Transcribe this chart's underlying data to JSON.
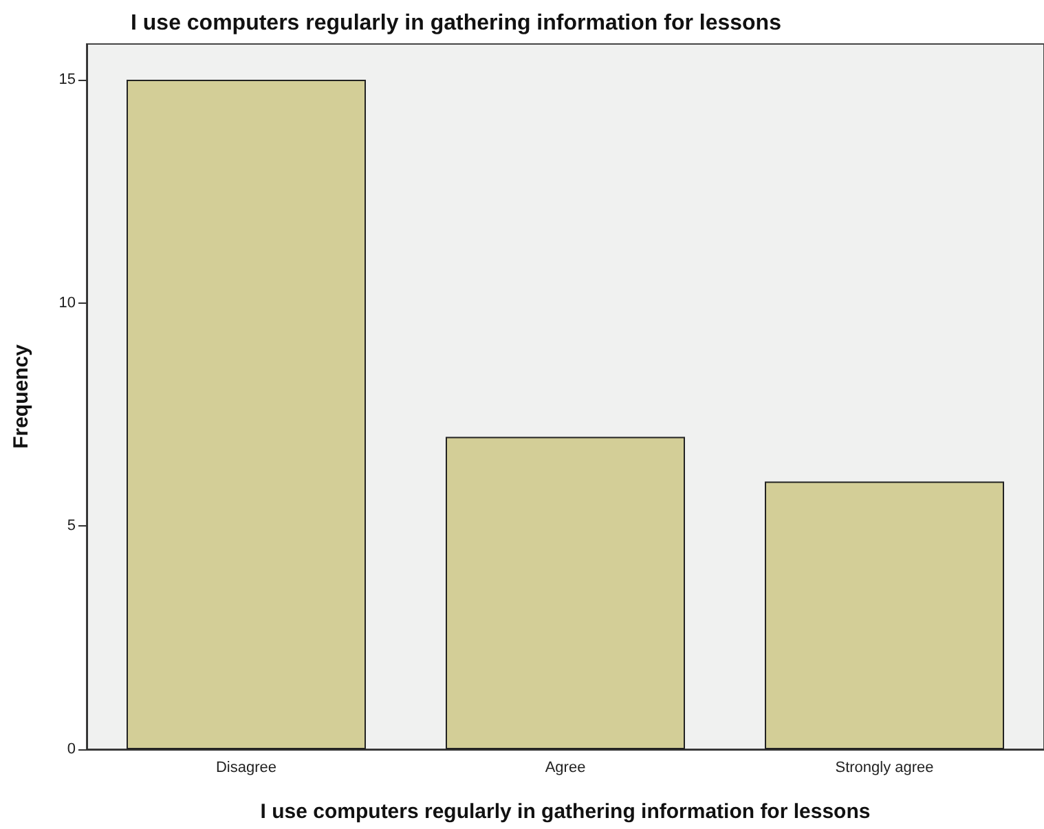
{
  "chart_data": {
    "type": "bar",
    "title": "I use computers regularly in gathering information for lessons",
    "xlabel": "I use computers regularly in gathering information for lessons",
    "ylabel": "Frequency",
    "categories": [
      "Disagree",
      "Agree",
      "Strongly agree"
    ],
    "values": [
      15,
      7,
      6
    ],
    "color": "#d3ce97",
    "ylim": [
      0,
      15.8
    ],
    "yticks": [
      0,
      5,
      10,
      15
    ],
    "grid": false
  }
}
